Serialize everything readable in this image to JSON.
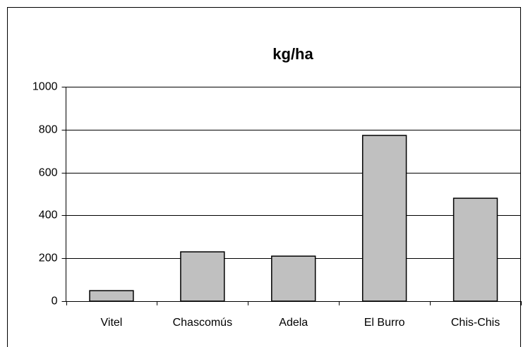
{
  "chart_data": {
    "type": "bar",
    "title": "kg/ha",
    "categories": [
      "Vitel",
      "Chascomús",
      "Adela",
      "El Burro",
      "Chis-Chis"
    ],
    "values": [
      49,
      230,
      210,
      773,
      480
    ],
    "color": "#c0c0c0",
    "ylim": [
      0,
      1000
    ],
    "yticks": [
      0,
      200,
      400,
      600,
      800,
      1000
    ],
    "grid": true
  }
}
